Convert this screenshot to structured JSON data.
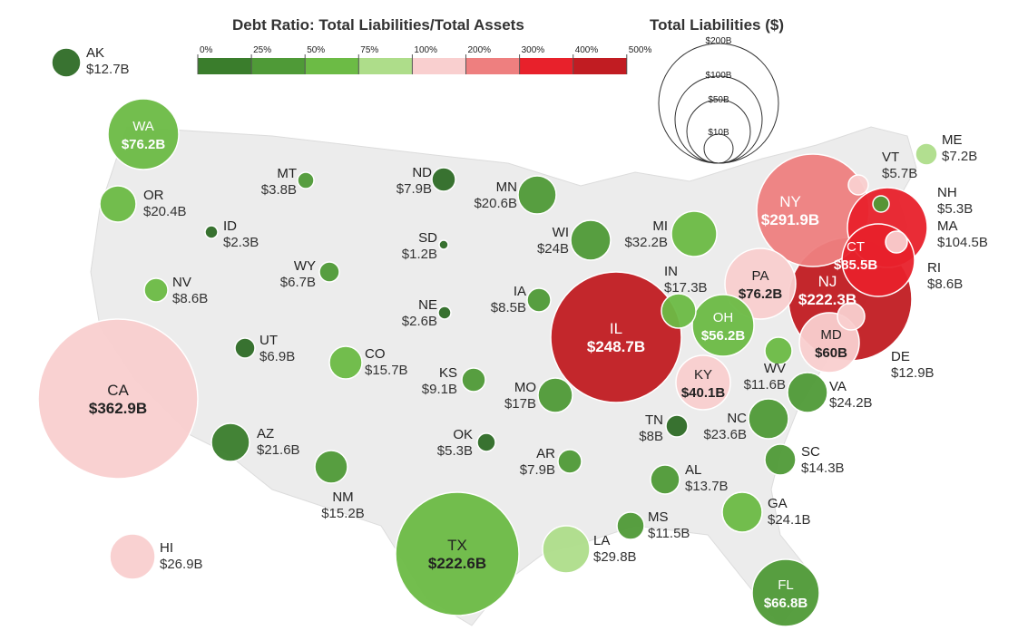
{
  "legend": {
    "ratio_title": "Debt Ratio: Total Liabilities/Total Assets",
    "ratio_ticks": [
      "0%",
      "25%",
      "50%",
      "75%",
      "100%",
      "200%",
      "300%",
      "400%",
      "500%"
    ],
    "ratio_colors": [
      "#3a7d2c",
      "#4f9a37",
      "#6cbb45",
      "#aedd8a",
      "#f9cfcf",
      "#ee7f7f",
      "#e8212b",
      "#c11c22"
    ],
    "size_title": "Total Liabilities ($)",
    "size_labels": [
      "$200B",
      "$100B",
      "$50B",
      "$10B"
    ]
  },
  "states": [
    {
      "code": "AK",
      "value": "$12.7B",
      "fill": "#2e6b26"
    },
    {
      "code": "WA",
      "value": "$76.2B",
      "fill": "#6cbb45"
    },
    {
      "code": "OR",
      "value": "$20.4B",
      "fill": "#6cbb45"
    },
    {
      "code": "ID",
      "value": "$2.3B",
      "fill": "#2e6b26"
    },
    {
      "code": "MT",
      "value": "$3.8B",
      "fill": "#4f9a37"
    },
    {
      "code": "WY",
      "value": "$6.7B",
      "fill": "#4f9a37"
    },
    {
      "code": "NV",
      "value": "$8.6B",
      "fill": "#6cbb45"
    },
    {
      "code": "UT",
      "value": "$6.9B",
      "fill": "#2e6b26"
    },
    {
      "code": "CA",
      "value": "$362.9B",
      "fill": "#f9cfcf"
    },
    {
      "code": "AZ",
      "value": "$21.6B",
      "fill": "#3a7d2c"
    },
    {
      "code": "CO",
      "value": "$15.7B",
      "fill": "#6cbb45"
    },
    {
      "code": "NM",
      "value": "$15.2B",
      "fill": "#4f9a37"
    },
    {
      "code": "HI",
      "value": "$26.9B",
      "fill": "#f9cfcf"
    },
    {
      "code": "ND",
      "value": "$7.9B",
      "fill": "#2e6b26"
    },
    {
      "code": "SD",
      "value": "$1.2B",
      "fill": "#2e6b26"
    },
    {
      "code": "NE",
      "value": "$2.6B",
      "fill": "#2e6b26"
    },
    {
      "code": "KS",
      "value": "$9.1B",
      "fill": "#4f9a37"
    },
    {
      "code": "OK",
      "value": "$5.3B",
      "fill": "#2e6b26"
    },
    {
      "code": "TX",
      "value": "$222.6B",
      "fill": "#6cbb45"
    },
    {
      "code": "MN",
      "value": "$20.6B",
      "fill": "#4f9a37"
    },
    {
      "code": "IA",
      "value": "$8.5B",
      "fill": "#4f9a37"
    },
    {
      "code": "MO",
      "value": "$17B",
      "fill": "#4f9a37"
    },
    {
      "code": "AR",
      "value": "$7.9B",
      "fill": "#4f9a37"
    },
    {
      "code": "LA",
      "value": "$29.8B",
      "fill": "#aedd8a"
    },
    {
      "code": "WI",
      "value": "$24B",
      "fill": "#4f9a37"
    },
    {
      "code": "IL",
      "value": "$248.7B",
      "fill": "#c11c22"
    },
    {
      "code": "MI",
      "value": "$32.2B",
      "fill": "#6cbb45"
    },
    {
      "code": "IN",
      "value": "$17.3B",
      "fill": "#6cbb45"
    },
    {
      "code": "OH",
      "value": "$56.2B",
      "fill": "#6cbb45"
    },
    {
      "code": "KY",
      "value": "$40.1B",
      "fill": "#f9cfcf"
    },
    {
      "code": "TN",
      "value": "$8B",
      "fill": "#2e6b26"
    },
    {
      "code": "MS",
      "value": "$11.5B",
      "fill": "#4f9a37"
    },
    {
      "code": "AL",
      "value": "$13.7B",
      "fill": "#4f9a37"
    },
    {
      "code": "GA",
      "value": "$24.1B",
      "fill": "#6cbb45"
    },
    {
      "code": "FL",
      "value": "$66.8B",
      "fill": "#4f9a37"
    },
    {
      "code": "SC",
      "value": "$14.3B",
      "fill": "#4f9a37"
    },
    {
      "code": "NC",
      "value": "$23.6B",
      "fill": "#4f9a37"
    },
    {
      "code": "VA",
      "value": "$24.2B",
      "fill": "#4f9a37"
    },
    {
      "code": "WV",
      "value": "$11.6B",
      "fill": "#6cbb45"
    },
    {
      "code": "PA",
      "value": "$76.2B",
      "fill": "#f9cfcf"
    },
    {
      "code": "NY",
      "value": "$291.9B",
      "fill": "#ee7f7f"
    },
    {
      "code": "NJ",
      "value": "$222.3B",
      "fill": "#c11c22"
    },
    {
      "code": "DE",
      "value": "$12.9B",
      "fill": "#f9cfcf"
    },
    {
      "code": "MD",
      "value": "$60B",
      "fill": "#f9cfcf"
    },
    {
      "code": "CT",
      "value": "$85.5B",
      "fill": "#e8212b"
    },
    {
      "code": "RI",
      "value": "$8.6B",
      "fill": "#f9cfcf"
    },
    {
      "code": "MA",
      "value": "$104.5B",
      "fill": "#e8212b"
    },
    {
      "code": "NH",
      "value": "$5.3B",
      "fill": "#4f9a37"
    },
    {
      "code": "VT",
      "value": "$5.7B",
      "fill": "#f9cfcf"
    },
    {
      "code": "ME",
      "value": "$7.2B",
      "fill": "#aedd8a"
    }
  ]
}
